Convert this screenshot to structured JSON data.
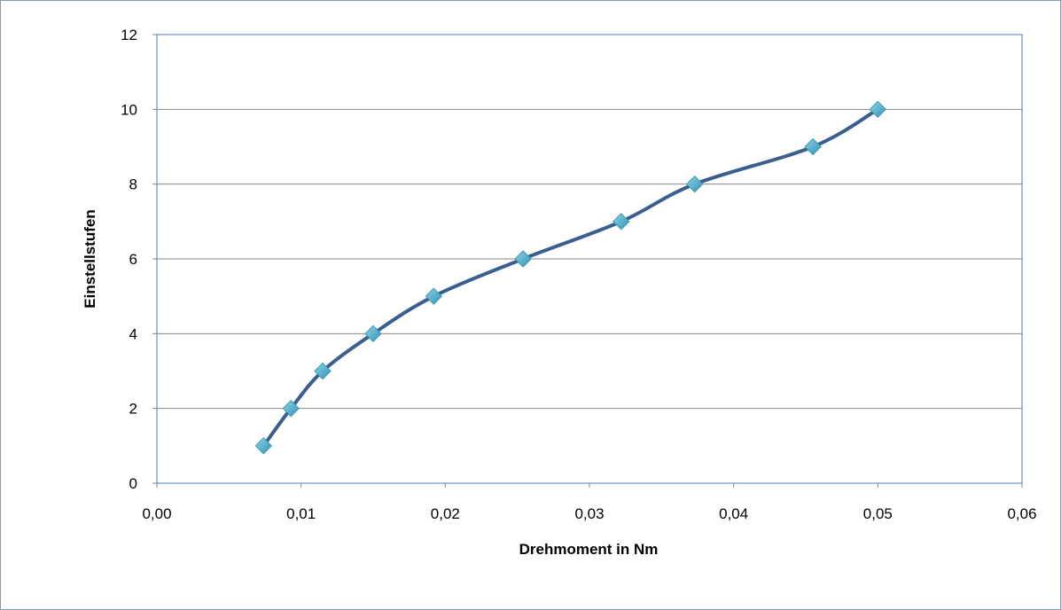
{
  "chart_data": {
    "type": "scatter",
    "title": "",
    "xlabel": "Drehmoment in Nm",
    "ylabel": "Einstellstufen",
    "xlim": [
      0,
      0.06
    ],
    "ylim": [
      0,
      12
    ],
    "x_ticks": [
      "0,00",
      "0,01",
      "0,02",
      "0,03",
      "0,04",
      "0,05",
      "0,06"
    ],
    "y_ticks": [
      "0",
      "2",
      "4",
      "6",
      "8",
      "10",
      "12"
    ],
    "grid": "horizontal",
    "smooth_line": true,
    "legend": "none",
    "series": [
      {
        "x": [
          0.0074,
          0.0093,
          0.0115,
          0.015,
          0.0192,
          0.0254,
          0.0322,
          0.0373,
          0.0455,
          0.05
        ],
        "y": [
          1,
          2,
          3,
          4,
          5,
          6,
          7,
          8,
          9,
          10
        ],
        "line_color": "#3a5f8f",
        "marker_color": "#4bacc6",
        "marker": "diamond"
      }
    ]
  }
}
